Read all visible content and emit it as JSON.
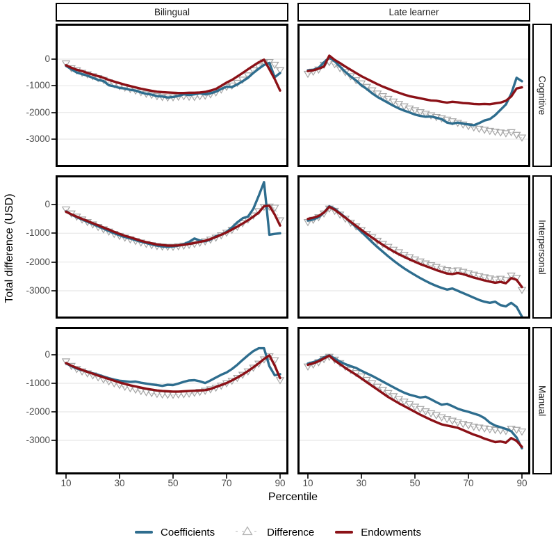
{
  "figure": {
    "y_axis_title": "Total difference (USD)",
    "x_axis_title": "Percentile",
    "column_facets": [
      "Bilingual",
      "Late learner"
    ],
    "row_facets": [
      "Cognitive",
      "Interpersonal",
      "Manual"
    ]
  },
  "legend": {
    "items": [
      {
        "label": "Coefficients",
        "key": "line",
        "color": "#2e6d8e"
      },
      {
        "label": "Difference",
        "key": "triangle",
        "color": "#b4b4b4"
      },
      {
        "label": "Endowments",
        "key": "line",
        "color": "#8b1117"
      }
    ]
  },
  "colors": {
    "coefficients": "#2e6d8e",
    "endowments": "#8b1117",
    "difference_marker": "#a6a6a6",
    "difference_line": "#c9c9c9",
    "gridline": "#ebebeb",
    "panel_border": "#000000",
    "tick_text": "#4d4d4d"
  },
  "chart_data": {
    "type": "line",
    "title": "",
    "xlabel": "Percentile",
    "ylabel": "Total difference (USD)",
    "legend_position": "bottom",
    "grid": "horizontal-major-only",
    "x_ticks": [
      10,
      30,
      50,
      70,
      90
    ],
    "y_ticks": [
      0,
      -1000,
      -2000,
      -3000
    ],
    "row_ylim": [
      [
        -4040,
        1330
      ],
      [
        -4050,
        1020
      ],
      [
        -4150,
        980
      ]
    ],
    "x": [
      10,
      12,
      14,
      16,
      18,
      20,
      22,
      24,
      26,
      28,
      30,
      32,
      34,
      36,
      38,
      40,
      42,
      44,
      46,
      48,
      50,
      52,
      54,
      56,
      58,
      60,
      62,
      64,
      66,
      68,
      70,
      72,
      74,
      76,
      78,
      80,
      82,
      84,
      86,
      88,
      90
    ],
    "panels": [
      {
        "row": "Cognitive",
        "col": "Bilingual",
        "series": {
          "coefficients": [
            -250,
            -380,
            -500,
            -560,
            -620,
            -700,
            -780,
            -820,
            -980,
            -1020,
            -1080,
            -1100,
            -1150,
            -1180,
            -1250,
            -1300,
            -1330,
            -1390,
            -1400,
            -1440,
            -1420,
            -1380,
            -1320,
            -1350,
            -1320,
            -1280,
            -1320,
            -1280,
            -1220,
            -1120,
            -1030,
            -1050,
            -950,
            -830,
            -700,
            -520,
            -360,
            -220,
            -140,
            -680,
            -520
          ],
          "endowments": [
            -230,
            -320,
            -400,
            -450,
            -520,
            -580,
            -640,
            -700,
            -780,
            -840,
            -900,
            -960,
            -1010,
            -1060,
            -1110,
            -1150,
            -1190,
            -1220,
            -1240,
            -1250,
            -1260,
            -1270,
            -1270,
            -1260,
            -1260,
            -1250,
            -1230,
            -1180,
            -1120,
            -1000,
            -880,
            -780,
            -650,
            -520,
            -380,
            -250,
            -120,
            -20,
            -380,
            -750,
            -1180
          ],
          "difference": [
            -170,
            -350,
            -430,
            -520,
            -580,
            -650,
            -720,
            -790,
            -880,
            -950,
            -1020,
            -1080,
            -1130,
            -1190,
            -1250,
            -1310,
            -1350,
            -1400,
            -1430,
            -1450,
            -1440,
            -1420,
            -1400,
            -1420,
            -1430,
            -1400,
            -1380,
            -1330,
            -1260,
            -1150,
            -1050,
            -1000,
            -900,
            -780,
            -620,
            -430,
            -280,
            -130,
            -120,
            -220,
            -420
          ]
        }
      },
      {
        "row": "Cognitive",
        "col": "Late learner",
        "series": {
          "coefficients": [
            -420,
            -400,
            -330,
            -120,
            60,
            -80,
            -280,
            -480,
            -650,
            -800,
            -980,
            -1120,
            -1280,
            -1420,
            -1530,
            -1640,
            -1750,
            -1850,
            -1930,
            -2000,
            -2080,
            -2130,
            -2160,
            -2150,
            -2200,
            -2250,
            -2380,
            -2420,
            -2380,
            -2420,
            -2450,
            -2480,
            -2400,
            -2300,
            -2250,
            -2100,
            -1900,
            -1700,
            -1300,
            -700,
            -830
          ],
          "endowments": [
            -450,
            -420,
            -360,
            -280,
            130,
            -30,
            -150,
            -280,
            -400,
            -520,
            -640,
            -740,
            -840,
            -940,
            -1030,
            -1110,
            -1190,
            -1260,
            -1330,
            -1390,
            -1430,
            -1470,
            -1510,
            -1550,
            -1560,
            -1600,
            -1630,
            -1600,
            -1620,
            -1650,
            -1660,
            -1680,
            -1690,
            -1680,
            -1690,
            -1660,
            -1630,
            -1560,
            -1400,
            -1100,
            -1060
          ],
          "difference": [
            -560,
            -480,
            -400,
            -220,
            -120,
            -200,
            -350,
            -500,
            -650,
            -800,
            -920,
            -1050,
            -1180,
            -1300,
            -1400,
            -1500,
            -1600,
            -1690,
            -1780,
            -1860,
            -1930,
            -2000,
            -2060,
            -2120,
            -2180,
            -2230,
            -2280,
            -2340,
            -2400,
            -2460,
            -2520,
            -2570,
            -2620,
            -2660,
            -2700,
            -2730,
            -2760,
            -2790,
            -2750,
            -2850,
            -2950
          ]
        }
      },
      {
        "row": "Interpersonal",
        "col": "Bilingual",
        "series": {
          "coefficients": [
            -240,
            -350,
            -440,
            -520,
            -600,
            -680,
            -760,
            -840,
            -920,
            -1000,
            -1070,
            -1130,
            -1180,
            -1240,
            -1290,
            -1340,
            -1390,
            -1430,
            -1460,
            -1470,
            -1460,
            -1430,
            -1380,
            -1300,
            -1180,
            -1250,
            -1280,
            -1220,
            -1100,
            -1050,
            -950,
            -800,
            -620,
            -480,
            -420,
            -150,
            300,
            780,
            -1050,
            -1020,
            -1000
          ],
          "endowments": [
            -250,
            -340,
            -420,
            -500,
            -570,
            -650,
            -720,
            -800,
            -870,
            -950,
            -1020,
            -1090,
            -1140,
            -1200,
            -1260,
            -1310,
            -1350,
            -1390,
            -1410,
            -1430,
            -1430,
            -1420,
            -1400,
            -1370,
            -1340,
            -1300,
            -1260,
            -1200,
            -1130,
            -1050,
            -970,
            -870,
            -770,
            -660,
            -550,
            -420,
            -280,
            -60,
            -40,
            -350,
            -730
          ],
          "difference": [
            -180,
            -320,
            -430,
            -530,
            -620,
            -700,
            -790,
            -870,
            -950,
            -1030,
            -1100,
            -1160,
            -1220,
            -1280,
            -1330,
            -1380,
            -1420,
            -1450,
            -1470,
            -1480,
            -1480,
            -1460,
            -1440,
            -1410,
            -1380,
            -1340,
            -1290,
            -1230,
            -1160,
            -1080,
            -990,
            -890,
            -780,
            -660,
            -530,
            -390,
            -240,
            -90,
            -80,
            -120,
            -560
          ]
        }
      },
      {
        "row": "Interpersonal",
        "col": "Late learner",
        "series": {
          "coefficients": [
            -560,
            -520,
            -440,
            -280,
            -60,
            -150,
            -300,
            -450,
            -620,
            -780,
            -950,
            -1130,
            -1310,
            -1480,
            -1640,
            -1800,
            -1950,
            -2090,
            -2220,
            -2340,
            -2450,
            -2560,
            -2660,
            -2750,
            -2830,
            -2900,
            -2960,
            -2920,
            -3000,
            -3080,
            -3160,
            -3240,
            -3320,
            -3380,
            -3420,
            -3380,
            -3500,
            -3540,
            -3420,
            -3560,
            -3900
          ],
          "endowments": [
            -500,
            -460,
            -400,
            -280,
            -80,
            -180,
            -320,
            -460,
            -600,
            -740,
            -880,
            -1020,
            -1150,
            -1280,
            -1400,
            -1520,
            -1630,
            -1730,
            -1820,
            -1910,
            -1990,
            -2070,
            -2140,
            -2210,
            -2280,
            -2340,
            -2400,
            -2420,
            -2380,
            -2420,
            -2480,
            -2540,
            -2590,
            -2640,
            -2680,
            -2720,
            -2690,
            -2740,
            -2560,
            -2620,
            -2870
          ],
          "difference": [
            -620,
            -540,
            -450,
            -320,
            -150,
            -230,
            -360,
            -500,
            -640,
            -770,
            -900,
            -1030,
            -1150,
            -1270,
            -1380,
            -1480,
            -1580,
            -1670,
            -1760,
            -1840,
            -1920,
            -1990,
            -2060,
            -2120,
            -2180,
            -2240,
            -2290,
            -2330,
            -2300,
            -2350,
            -2400,
            -2450,
            -2500,
            -2540,
            -2580,
            -2620,
            -2590,
            -2640,
            -2480,
            -2560,
            -2980
          ]
        }
      },
      {
        "row": "Manual",
        "col": "Bilingual",
        "series": {
          "coefficients": [
            -300,
            -400,
            -480,
            -540,
            -590,
            -650,
            -700,
            -760,
            -820,
            -870,
            -910,
            -930,
            -950,
            -940,
            -980,
            -1010,
            -1040,
            -1060,
            -1090,
            -1050,
            -1060,
            -1010,
            -950,
            -900,
            -890,
            -930,
            -990,
            -900,
            -800,
            -700,
            -620,
            -500,
            -350,
            -180,
            -20,
            130,
            230,
            230,
            -400,
            -720,
            -680
          ],
          "endowments": [
            -290,
            -380,
            -460,
            -530,
            -600,
            -660,
            -730,
            -790,
            -850,
            -910,
            -970,
            -1020,
            -1070,
            -1110,
            -1150,
            -1190,
            -1220,
            -1250,
            -1270,
            -1280,
            -1290,
            -1290,
            -1280,
            -1270,
            -1260,
            -1250,
            -1240,
            -1200,
            -1130,
            -1060,
            -990,
            -900,
            -800,
            -690,
            -570,
            -440,
            -300,
            -150,
            -20,
            -380,
            -820
          ],
          "difference": [
            -240,
            -400,
            -510,
            -590,
            -660,
            -730,
            -800,
            -870,
            -940,
            -1010,
            -1070,
            -1130,
            -1180,
            -1230,
            -1280,
            -1320,
            -1350,
            -1380,
            -1400,
            -1410,
            -1410,
            -1400,
            -1390,
            -1370,
            -1340,
            -1310,
            -1270,
            -1220,
            -1160,
            -1090,
            -1010,
            -920,
            -820,
            -710,
            -590,
            -460,
            -320,
            -170,
            -60,
            -200,
            -900
          ]
        }
      },
      {
        "row": "Manual",
        "col": "Late learner",
        "series": {
          "coefficients": [
            -310,
            -260,
            -190,
            -90,
            -20,
            -130,
            -240,
            -330,
            -400,
            -460,
            -560,
            -650,
            -740,
            -840,
            -940,
            -1040,
            -1140,
            -1240,
            -1330,
            -1400,
            -1450,
            -1500,
            -1470,
            -1560,
            -1660,
            -1750,
            -1720,
            -1800,
            -1890,
            -1950,
            -2000,
            -2060,
            -2120,
            -2220,
            -2380,
            -2480,
            -2540,
            -2600,
            -2680,
            -2900,
            -3280
          ],
          "endowments": [
            -350,
            -300,
            -230,
            -130,
            -30,
            -200,
            -330,
            -460,
            -580,
            -700,
            -830,
            -960,
            -1090,
            -1220,
            -1350,
            -1480,
            -1590,
            -1700,
            -1800,
            -1900,
            -2000,
            -2100,
            -2190,
            -2280,
            -2360,
            -2440,
            -2480,
            -2520,
            -2560,
            -2640,
            -2720,
            -2800,
            -2860,
            -2940,
            -3000,
            -3060,
            -3040,
            -3080,
            -2920,
            -3020,
            -3230
          ],
          "difference": [
            -420,
            -350,
            -270,
            -160,
            -80,
            -180,
            -300,
            -430,
            -540,
            -650,
            -770,
            -890,
            -1010,
            -1130,
            -1240,
            -1350,
            -1460,
            -1560,
            -1650,
            -1740,
            -1830,
            -1910,
            -1990,
            -2060,
            -2130,
            -2200,
            -2260,
            -2320,
            -2380,
            -2430,
            -2480,
            -2530,
            -2560,
            -2590,
            -2620,
            -2640,
            -2660,
            -2680,
            -2600,
            -2640,
            -2700
          ]
        }
      }
    ]
  }
}
